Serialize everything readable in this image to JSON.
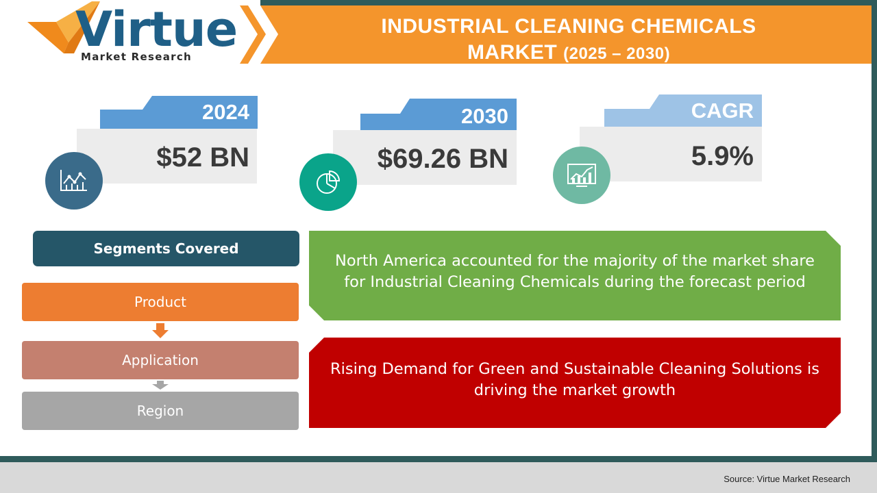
{
  "logo": {
    "wordmark": "Virtue",
    "tagline": "Market Research"
  },
  "title": {
    "line1": "INDUSTRIAL  CLEANING  CHEMICALS",
    "line2": "MARKET",
    "years": "(2025 – 2030)"
  },
  "stats": [
    {
      "label": "2024",
      "value": "$52 BN",
      "icon": "line-chart-icon",
      "icon_color": "#3a6b8a"
    },
    {
      "label": "2030",
      "value": "$69.26 BN",
      "icon": "pie-chart-icon",
      "icon_color": "#0aa48a"
    },
    {
      "label": "CAGR",
      "value": "5.9%",
      "icon": "growth-chart-icon",
      "icon_color": "#6fb9a3"
    }
  ],
  "segments": {
    "heading": "Segments Covered",
    "items": [
      "Product",
      "Application",
      "Region"
    ]
  },
  "callouts": [
    {
      "text": "North America accounted for the majority of the market share for Industrial Cleaning Chemicals during the forecast period",
      "color": "#70ad47"
    },
    {
      "text": "Rising Demand for Green and Sustainable Cleaning Solutions is driving the market growth",
      "color": "#c00000"
    }
  ],
  "source": "Source: Virtue Market Research",
  "colors": {
    "banner": "#f4952c",
    "tab_blue": "#5b9bd5",
    "tab_light": "#9ec3e6",
    "frame": "#2f5b5b"
  }
}
